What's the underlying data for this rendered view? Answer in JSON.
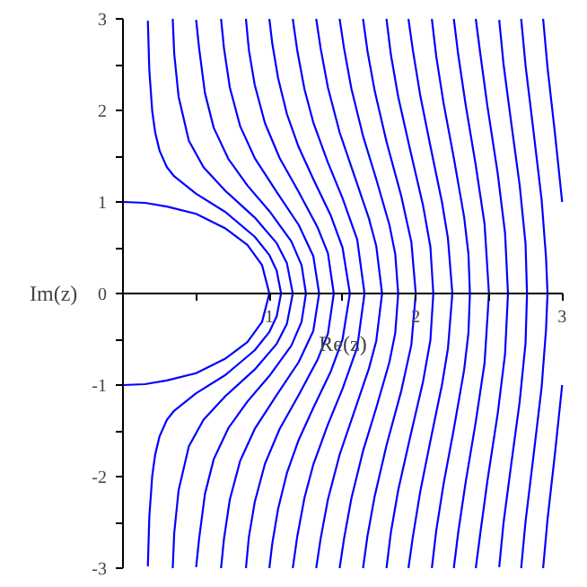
{
  "chart_data": {
    "type": "line",
    "xlabel": "Re(z)",
    "ylabel": "Im(z)",
    "xlim": [
      0,
      3
    ],
    "ylim": [
      -3,
      3
    ],
    "xticks": [
      {
        "value": 0.5,
        "label": null
      },
      1,
      {
        "value": 1.5,
        "label": null
      },
      2,
      {
        "value": 2.5,
        "label": null
      },
      3
    ],
    "yticks": [
      -3,
      {
        "value": -2.5,
        "label": null
      },
      -2,
      {
        "value": -1.5,
        "label": null
      },
      -1,
      {
        "value": -0.5,
        "label": null
      },
      0,
      {
        "value": 0.5,
        "label": null
      },
      1,
      {
        "value": 1.5,
        "label": null
      },
      2,
      {
        "value": 2.5,
        "label": null
      },
      3
    ],
    "series": [
      {
        "color": "#0000ff",
        "x": [
          0,
          0.15,
          0.3,
          0.5,
          0.7,
          0.85,
          0.95,
          1,
          0.95,
          0.85,
          0.7,
          0.5,
          0.3,
          0.15,
          0
        ],
        "values": [
          1,
          0.99,
          0.95,
          0.87,
          0.71,
          0.53,
          0.31,
          0,
          -0.31,
          -0.53,
          -0.71,
          -0.87,
          -0.95,
          -0.99,
          -1
        ]
      },
      {
        "color": "#0000ff",
        "x": [
          0.17,
          0.18,
          0.2,
          0.22,
          0.25,
          0.3,
          0.35,
          0.5,
          0.7,
          0.9,
          1.0,
          1.05,
          1.08,
          1.05,
          1.0,
          0.9,
          0.7,
          0.5,
          0.35,
          0.3,
          0.25,
          0.22,
          0.2,
          0.18,
          0.17
        ],
        "values": [
          2.98,
          2.44,
          1.99,
          1.76,
          1.56,
          1.38,
          1.28,
          1.09,
          0.89,
          0.62,
          0.42,
          0.25,
          0,
          -0.25,
          -0.42,
          -0.62,
          -0.89,
          -1.09,
          -1.28,
          -1.38,
          -1.56,
          -1.76,
          -1.99,
          -2.44,
          -2.98
        ]
      },
      {
        "color": "#0000ff",
        "x": [
          0.34,
          0.35,
          0.38,
          0.45,
          0.55,
          0.7,
          0.9,
          1.05,
          1.12,
          1.16,
          1.12,
          1.05,
          0.9,
          0.7,
          0.55,
          0.45,
          0.38,
          0.35,
          0.34
        ],
        "values": [
          3,
          2.62,
          2.15,
          1.67,
          1.38,
          1.12,
          0.83,
          0.55,
          0.33,
          0,
          -0.33,
          -0.55,
          -0.83,
          -1.12,
          -1.38,
          -1.67,
          -2.15,
          -2.62,
          -3
        ]
      },
      {
        "color": "#0000ff",
        "x": [
          0.5,
          0.52,
          0.56,
          0.62,
          0.72,
          0.85,
          1.0,
          1.15,
          1.22,
          1.25,
          1.22,
          1.15,
          1.0,
          0.85,
          0.72,
          0.62,
          0.56,
          0.52,
          0.5
        ],
        "values": [
          2.99,
          2.68,
          2.19,
          1.81,
          1.47,
          1.18,
          0.9,
          0.57,
          0.31,
          0,
          -0.31,
          -0.57,
          -0.9,
          -1.18,
          -1.47,
          -1.81,
          -2.19,
          -2.68,
          -2.99
        ]
      },
      {
        "color": "#0000ff",
        "x": [
          0.67,
          0.69,
          0.73,
          0.8,
          0.9,
          1.05,
          1.2,
          1.3,
          1.34,
          1.3,
          1.2,
          1.05,
          0.9,
          0.8,
          0.73,
          0.69,
          0.67
        ],
        "values": [
          3,
          2.68,
          2.25,
          1.83,
          1.48,
          1.11,
          0.75,
          0.41,
          0,
          -0.41,
          -0.75,
          -1.11,
          -1.48,
          -1.83,
          -2.25,
          -2.68,
          -3
        ]
      },
      {
        "color": "#0000ff",
        "x": [
          0.84,
          0.86,
          0.9,
          0.97,
          1.07,
          1.2,
          1.33,
          1.4,
          1.44,
          1.4,
          1.33,
          1.2,
          1.07,
          0.97,
          0.9,
          0.86,
          0.84
        ],
        "values": [
          3,
          2.66,
          2.28,
          1.86,
          1.48,
          1.11,
          0.72,
          0.44,
          0,
          -0.44,
          -0.72,
          -1.11,
          -1.48,
          -1.86,
          -2.28,
          -2.66,
          -3
        ]
      },
      {
        "color": "#0000ff",
        "x": [
          1.0,
          1.02,
          1.06,
          1.12,
          1.2,
          1.3,
          1.42,
          1.5,
          1.55,
          1.5,
          1.42,
          1.3,
          1.2,
          1.12,
          1.06,
          1.02,
          1.0
        ],
        "values": [
          3,
          2.73,
          2.35,
          1.96,
          1.6,
          1.25,
          0.85,
          0.5,
          0,
          -0.5,
          -0.85,
          -1.25,
          -1.6,
          -1.96,
          -2.35,
          -2.73,
          -3
        ]
      },
      {
        "color": "#0000ff",
        "x": [
          1.16,
          1.19,
          1.24,
          1.3,
          1.4,
          1.5,
          1.6,
          1.65,
          1.6,
          1.5,
          1.4,
          1.3,
          1.24,
          1.19,
          1.16
        ],
        "values": [
          3,
          2.66,
          2.23,
          1.87,
          1.43,
          1.04,
          0.59,
          0,
          -0.59,
          -1.04,
          -1.43,
          -1.87,
          -2.23,
          -2.66,
          -3
        ]
      },
      {
        "color": "#0000ff",
        "x": [
          1.32,
          1.35,
          1.4,
          1.48,
          1.58,
          1.68,
          1.73,
          1.77,
          1.73,
          1.68,
          1.58,
          1.48,
          1.4,
          1.35,
          1.32
        ],
        "values": [
          3,
          2.68,
          2.25,
          1.76,
          1.29,
          0.82,
          0.52,
          0,
          -0.52,
          -0.82,
          -1.29,
          -1.76,
          -2.25,
          -2.68,
          -3
        ]
      },
      {
        "color": "#0000ff",
        "x": [
          1.48,
          1.51,
          1.56,
          1.64,
          1.73,
          1.82,
          1.86,
          1.88,
          1.86,
          1.82,
          1.73,
          1.64,
          1.56,
          1.51,
          1.48
        ],
        "values": [
          3,
          2.68,
          2.24,
          1.72,
          1.25,
          0.75,
          0.43,
          0,
          -0.43,
          -0.75,
          -1.25,
          -1.72,
          -2.24,
          -2.68,
          -3
        ]
      },
      {
        "color": "#0000ff",
        "x": [
          1.64,
          1.67,
          1.72,
          1.8,
          1.9,
          1.97,
          2.0,
          1.97,
          1.9,
          1.8,
          1.72,
          1.67,
          1.64
        ],
        "values": [
          3,
          2.65,
          2.21,
          1.66,
          1.07,
          0.56,
          0,
          -0.56,
          -1.07,
          -1.66,
          -2.21,
          -2.65,
          -3
        ]
      },
      {
        "color": "#0000ff",
        "x": [
          1.8,
          1.83,
          1.88,
          1.96,
          2.05,
          2.1,
          2.12,
          2.1,
          2.05,
          1.96,
          1.88,
          1.83,
          1.8
        ],
        "values": [
          3,
          2.61,
          2.15,
          1.58,
          0.96,
          0.51,
          0,
          -0.51,
          -0.96,
          -1.58,
          -2.15,
          -2.61,
          -3
        ]
      },
      {
        "color": "#0000ff",
        "x": [
          1.95,
          1.98,
          2.03,
          2.1,
          2.18,
          2.22,
          2.25,
          2.22,
          2.18,
          2.1,
          2.03,
          1.98,
          1.95
        ],
        "values": [
          3,
          2.66,
          2.17,
          1.61,
          0.99,
          0.6,
          0,
          -0.6,
          -0.99,
          -1.61,
          -2.17,
          -2.66,
          -3
        ]
      },
      {
        "color": "#0000ff",
        "x": [
          2.11,
          2.14,
          2.19,
          2.26,
          2.33,
          2.36,
          2.37,
          2.36,
          2.33,
          2.26,
          2.19,
          2.14,
          2.11
        ],
        "values": [
          3,
          2.59,
          2.08,
          1.48,
          0.84,
          0.43,
          0,
          -0.43,
          -0.84,
          -1.48,
          -2.08,
          -2.59,
          -3
        ]
      },
      {
        "color": "#0000ff",
        "x": [
          2.26,
          2.29,
          2.34,
          2.41,
          2.47,
          2.5,
          2.47,
          2.41,
          2.34,
          2.29,
          2.26
        ],
        "values": [
          3,
          2.61,
          2.07,
          1.4,
          0.76,
          0,
          -0.76,
          -1.4,
          -2.07,
          -2.61,
          -3
        ]
      },
      {
        "color": "#0000ff",
        "x": [
          2.41,
          2.44,
          2.49,
          2.56,
          2.61,
          2.63,
          2.61,
          2.56,
          2.49,
          2.44,
          2.41
        ],
        "values": [
          3,
          2.63,
          2.04,
          1.31,
          0.66,
          0,
          -0.66,
          -1.31,
          -2.04,
          -2.63,
          -3
        ]
      },
      {
        "color": "#0000ff",
        "x": [
          2.57,
          2.6,
          2.65,
          2.71,
          2.75,
          2.76,
          2.75,
          2.71,
          2.65,
          2.6,
          2.57
        ],
        "values": [
          2.99,
          2.5,
          1.89,
          1.18,
          0.54,
          0,
          -0.54,
          -1.18,
          -1.89,
          -2.5,
          -2.99
        ]
      },
      {
        "color": "#0000ff",
        "x": [
          2.72,
          2.75,
          2.8,
          2.86,
          2.89,
          2.9,
          2.89,
          2.86,
          2.8,
          2.75,
          2.72
        ],
        "values": [
          3,
          2.49,
          1.83,
          1.02,
          0.39,
          0,
          -0.39,
          -1.02,
          -1.83,
          -2.49,
          -3
        ]
      },
      {
        "color": "#0000ff",
        "x": [
          2.87,
          2.9,
          2.95,
          3.0
        ],
        "values": [
          3,
          2.47,
          1.76,
          1.0
        ]
      },
      {
        "color": "#0000ff",
        "x": [
          3.0,
          2.95,
          2.9,
          2.87
        ],
        "values": [
          -1.0,
          -1.76,
          -2.47,
          -3
        ]
      }
    ]
  }
}
